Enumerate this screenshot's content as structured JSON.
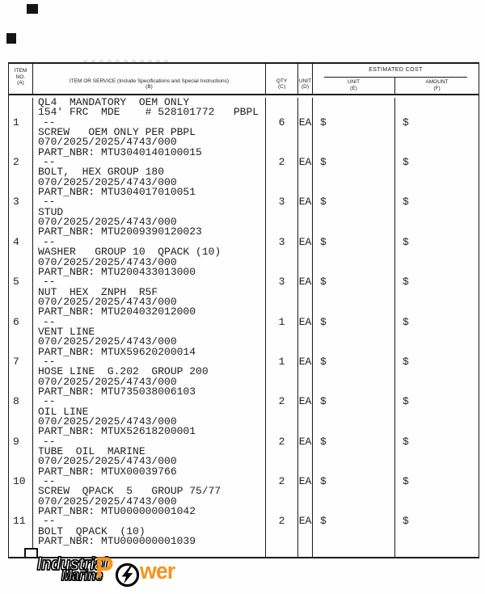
{
  "header": {
    "col_item_no": [
      "ITEM",
      "NO.",
      "(A)"
    ],
    "col_item_service": {
      "line1": "ITEM OR SERVICE (Include Specifications and Special Instructions)",
      "line2": "(B)"
    },
    "col_qty": [
      "QTY",
      "(C)"
    ],
    "col_unit": [
      "UNIT",
      "(D)"
    ],
    "estimated_cost": {
      "label": "ESTIMATED COST",
      "col_unit_cost": [
        "UNIT",
        "(E)"
      ],
      "col_amount": [
        "AMOUNT",
        "(F)"
      ]
    }
  },
  "items": [
    {
      "no": "1",
      "pre_lines": [
        "QL4  MANDATORY  OEM ONLY",
        "154' FRC  MDE    # 528101772   PBPL"
      ],
      "dash": "--",
      "qty": "6",
      "unit": "EA",
      "unit_cost": "$",
      "amount": "$",
      "lines": [
        "SCREW   OEM ONLY PER PBPL",
        "070/2025/2025/4743/000",
        "PART_NBR: MTU3040140100015"
      ]
    },
    {
      "no": "2",
      "pre_lines": [],
      "dash": "--",
      "qty": "2",
      "unit": "EA",
      "unit_cost": "$",
      "amount": "$",
      "lines": [
        "BOLT,  HEX GROUP 180",
        "070/2025/2025/4743/000",
        "PART_NBR: MTU304017010051"
      ]
    },
    {
      "no": "3",
      "pre_lines": [],
      "dash": "--",
      "qty": "3",
      "unit": "EA",
      "unit_cost": "$",
      "amount": "$",
      "lines": [
        "STUD",
        "070/2025/2025/4743/000",
        "PART_NBR: MTU2009390120023"
      ]
    },
    {
      "no": "4",
      "pre_lines": [],
      "dash": "--",
      "qty": "3",
      "unit": "EA",
      "unit_cost": "$",
      "amount": "$",
      "lines": [
        "WASHER   GROUP 10  QPACK (10)",
        "070/2025/2025/4743/000",
        "PART_NBR: MTU200433013000"
      ]
    },
    {
      "no": "5",
      "pre_lines": [],
      "dash": "--",
      "qty": "3",
      "unit": "EA",
      "unit_cost": "$",
      "amount": "$",
      "lines": [
        "NUT  HEX  ZNPH  R5F",
        "070/2025/2025/4743/000",
        "PART_NBR: MTU204032012000"
      ]
    },
    {
      "no": "6",
      "pre_lines": [],
      "dash": "--",
      "qty": "1",
      "unit": "EA",
      "unit_cost": "$",
      "amount": "$",
      "lines": [
        "VENT LINE",
        "070/2025/2025/4743/000",
        "PART_NBR: MTUX59620200014"
      ]
    },
    {
      "no": "7",
      "pre_lines": [],
      "dash": "--",
      "qty": "1",
      "unit": "EA",
      "unit_cost": "$",
      "amount": "$",
      "lines": [
        "HOSE LINE  G.202  GROUP 200",
        "070/2025/2025/4743/000",
        "PART_NBR: MTU735038006103"
      ]
    },
    {
      "no": "8",
      "pre_lines": [],
      "dash": "--",
      "qty": "2",
      "unit": "EA",
      "unit_cost": "$",
      "amount": "$",
      "lines": [
        "OIL LINE",
        "070/2025/2025/4743/000",
        "PART_NBR: MTUX52618200001"
      ]
    },
    {
      "no": "9",
      "pre_lines": [],
      "dash": "--",
      "qty": "2",
      "unit": "EA",
      "unit_cost": "$",
      "amount": "$",
      "lines": [
        "TUBE  OIL  MARINE",
        "070/2025/2025/4743/000",
        "PART_NBR: MTUX00039766"
      ]
    },
    {
      "no": "10",
      "pre_lines": [],
      "dash": "--",
      "qty": "2",
      "unit": "EA",
      "unit_cost": "$",
      "amount": "$",
      "lines": [
        "SCREW  QPACK  5   GROUP 75/77",
        "070/2025/2025/4743/000",
        "PART_NBR: MTU000000001042"
      ]
    },
    {
      "no": "11",
      "pre_lines": [],
      "dash": "--",
      "qty": "2",
      "unit": "EA",
      "unit_cost": "$",
      "amount": "$",
      "lines": [
        "BOLT  QPACK  (10)",
        "PART_NBR: MTU000000001039"
      ]
    }
  ],
  "logo": {
    "word1": "Industrial",
    "word2": "Marine",
    "power_p": "P",
    "power_rest": "wer",
    "orange_color": "#F7941E"
  }
}
